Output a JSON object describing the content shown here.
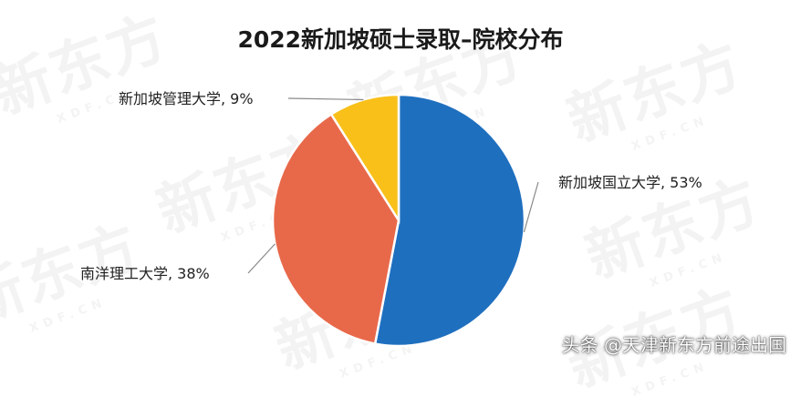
{
  "chart_data": {
    "type": "pie",
    "title": "2022新加坡硕士录取–院校分布",
    "slices": [
      {
        "label": "新加坡国立大学",
        "value": 53,
        "display": "新加坡国立大学, 53%",
        "color": "#1f6fbf"
      },
      {
        "label": "南洋理工大学",
        "value": 38,
        "display": "南洋理工大学, 38%",
        "color": "#e8694a"
      },
      {
        "label": "新加坡管理大学",
        "value": 9,
        "display": "新加坡管理大学, 9%",
        "color": "#f9c01a"
      }
    ],
    "legend": "none"
  },
  "watermark": {
    "text": "新东方",
    "subtext": "XDF.CN"
  },
  "credit": "头条 @天津新东方前途出国"
}
